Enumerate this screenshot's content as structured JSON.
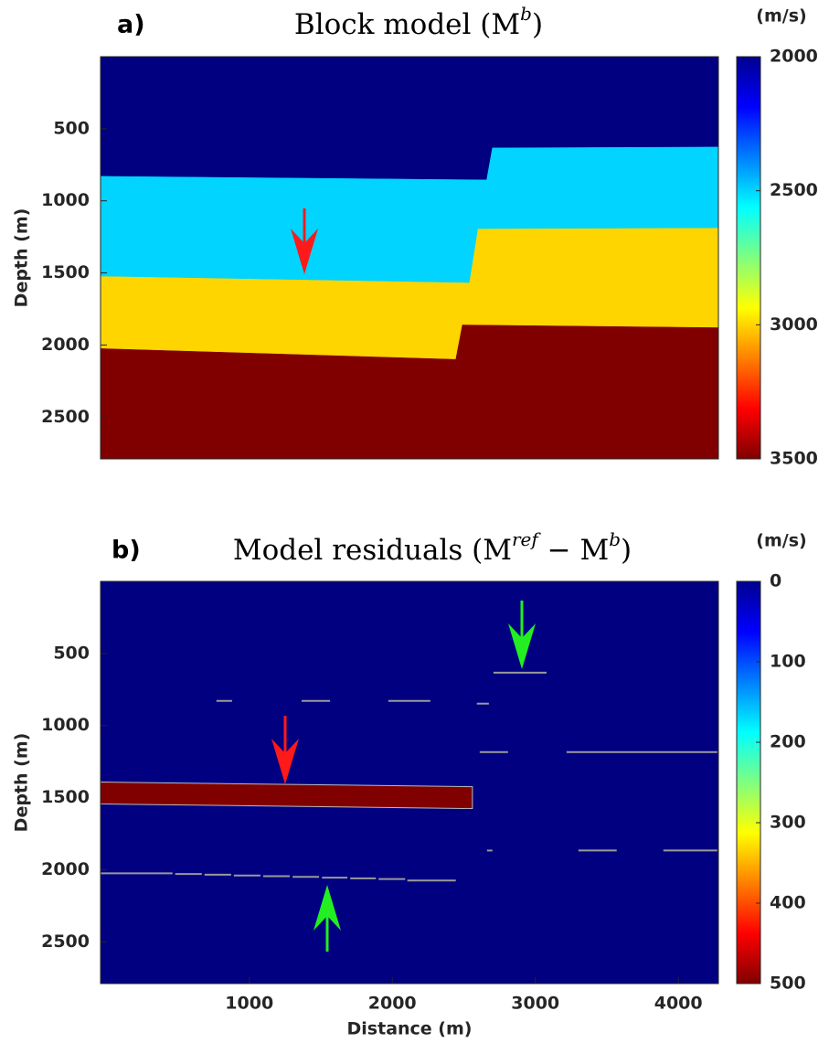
{
  "chart_data": [
    {
      "type": "velocity-model",
      "panel_label": "a)",
      "title": [
        "Block model (M",
        "b",
        ")"
      ],
      "ylabel": "Depth (m)",
      "colorbar_label": "(m/s)",
      "colormap": "jet",
      "xlim": [
        -40,
        4280
      ],
      "ylim": [
        0,
        2790
      ],
      "yticks": [
        500,
        1000,
        1500,
        2000,
        2500
      ],
      "clim": [
        2000,
        3500
      ],
      "cticks": [
        2000,
        2500,
        3000,
        3500
      ],
      "layer_values": [
        2000,
        2500,
        3000,
        3500
      ],
      "interfaces": [
        {
          "x": [
            -40,
            2660,
            2700,
            4280
          ],
          "depth": [
            830,
            855,
            633,
            627
          ]
        },
        {
          "x": [
            -40,
            2540,
            2600,
            4280
          ],
          "depth": [
            1525,
            1570,
            1196,
            1190
          ]
        },
        {
          "x": [
            -40,
            2444,
            2490,
            4280
          ],
          "depth": [
            2025,
            2100,
            1861,
            1880
          ]
        }
      ],
      "bodies": [],
      "segments": []
    },
    {
      "type": "velocity-model",
      "panel_label": "b)",
      "title": [
        "Model residuals (M",
        "ref",
        " − M",
        "b",
        ")"
      ],
      "ylabel": "Depth (m)",
      "xlabel": "Distance (m)",
      "colorbar_label": "(m/s)",
      "colormap": "jet",
      "xlim": [
        -40,
        4280
      ],
      "ylim": [
        0,
        2790
      ],
      "xticks": [
        1000,
        2000,
        3000,
        4000
      ],
      "yticks": [
        500,
        1000,
        1500,
        2000,
        2500
      ],
      "clim": [
        0,
        500
      ],
      "cticks": [
        0,
        100,
        200,
        300,
        400,
        500
      ],
      "layer_values": [
        0
      ],
      "interfaces": [],
      "bodies": [
        {
          "value": 500,
          "x": [
            -40,
            2560
          ],
          "top": [
            1392,
            1424
          ],
          "bottom": [
            1544,
            1576
          ]
        }
      ],
      "segment_color": "#9a9a9a",
      "segments": [
        {
          "x": [
            2707,
            3078
          ],
          "depth": 633
        },
        {
          "x": [
            770,
            880
          ],
          "depth": 829
        },
        {
          "x": [
            1366,
            1565
          ],
          "depth": 829
        },
        {
          "x": [
            1972,
            2266
          ],
          "depth": 829
        },
        {
          "x": [
            2591,
            2675
          ],
          "depth": 848
        },
        {
          "x": [
            2611,
            2809
          ],
          "depth": 1184
        },
        {
          "x": [
            3218,
            4272
          ],
          "depth": 1184
        },
        {
          "x": [
            2662,
            2700
          ],
          "depth": 1867
        },
        {
          "x": [
            3301,
            3569
          ],
          "depth": 1867
        },
        {
          "x": [
            3895,
            4272
          ],
          "depth": 1867
        },
        {
          "x": [
            -40,
            463
          ],
          "depth": 2025
        },
        {
          "x": [
            482,
            668
          ],
          "depth": 2030
        },
        {
          "x": [
            687,
            873
          ],
          "depth": 2035
        },
        {
          "x": [
            892,
            1078
          ],
          "depth": 2040
        },
        {
          "x": [
            1097,
            1283
          ],
          "depth": 2045
        },
        {
          "x": [
            1303,
            1488
          ],
          "depth": 2050
        },
        {
          "x": [
            1508,
            1686
          ],
          "depth": 2055
        },
        {
          "x": [
            1706,
            1885
          ],
          "depth": 2060
        },
        {
          "x": [
            1904,
            2090
          ],
          "depth": 2065
        },
        {
          "x": [
            2105,
            2444
          ],
          "depth": 2075
        }
      ]
    }
  ]
}
